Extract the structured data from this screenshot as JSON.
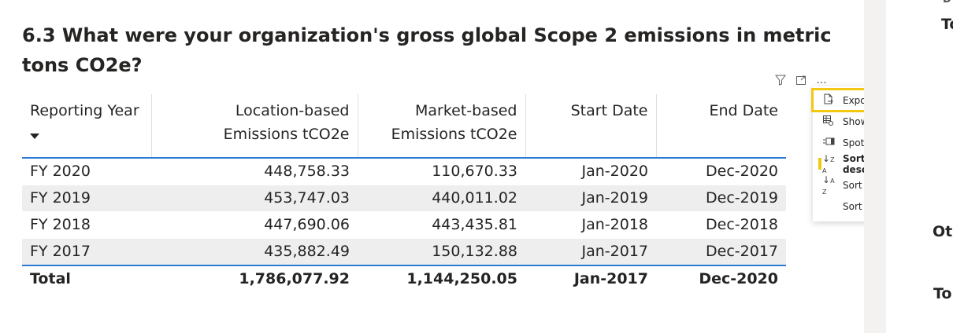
{
  "title": "6.3 What were your organization's gross global Scope 2 emissions in metric tons CO2e?",
  "visual_header": {
    "icons": [
      "filter-icon",
      "focus-mode-icon",
      "more-options-icon"
    ],
    "more_options_label": "..."
  },
  "table": {
    "columns": [
      "Reporting Year",
      "Location-based Emissions tCO2e",
      "Market-based Emissions tCO2e",
      "Start Date",
      "End Date"
    ],
    "rows": [
      [
        "FY 2020",
        "448,758.33",
        "110,670.33",
        "Jan-2020",
        "Dec-2020"
      ],
      [
        "FY 2019",
        "453,747.03",
        "440,011.02",
        "Jan-2019",
        "Dec-2019"
      ],
      [
        "FY 2018",
        "447,690.06",
        "443,435.81",
        "Jan-2018",
        "Dec-2018"
      ],
      [
        "FY 2017",
        "435,882.49",
        "150,132.88",
        "Jan-2017",
        "Dec-2017"
      ]
    ],
    "total": [
      "Total",
      "1,786,077.92",
      "1,144,250.05",
      "Jan-2017",
      "Dec-2020"
    ],
    "sort_column": "Reporting Year",
    "sort_direction": "descending"
  },
  "context_menu": {
    "items": [
      {
        "label": "Export data",
        "icon": "export-icon"
      },
      {
        "label": "Show as a table",
        "icon": "table-icon"
      },
      {
        "label": "Spotlight",
        "icon": "spotlight-icon"
      },
      {
        "label": "Sort descending",
        "icon": "sort-descending-icon"
      },
      {
        "label": "Sort ascending",
        "icon": "sort-ascending-icon"
      },
      {
        "label": "Sort by",
        "icon": "chevron-right-icon"
      }
    ],
    "highlighted_item": "Export data",
    "active_item": "Sort descending",
    "highlight_color": "#f2c811"
  },
  "right_panel": {
    "partial_texts": [
      "D",
      "To",
      "Ot",
      "To"
    ]
  },
  "colors": {
    "header_rule": "#2a7bd3",
    "alt_row": "#eeeeee",
    "highlight": "#f2c811"
  }
}
